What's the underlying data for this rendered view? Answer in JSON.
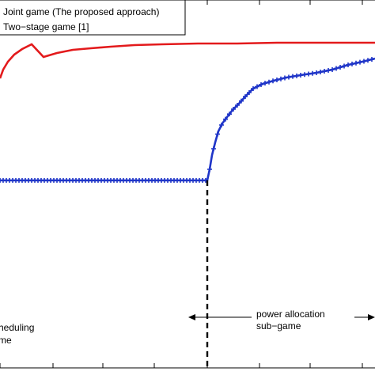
{
  "chart_data": {
    "type": "line",
    "title": "",
    "xlabel": "",
    "ylabel": "",
    "grid": false,
    "legend_position": "top-left",
    "legend": [
      {
        "label": "Joint game (The proposed approach)",
        "color": "#e31a1c",
        "marker": "none"
      },
      {
        "label": "Two−stage game [1]",
        "color": "#1f35c8",
        "marker": "plus"
      }
    ],
    "xlim": [
      0,
      474
    ],
    "ylim": [
      0,
      474
    ],
    "x_ticks": [
      0,
      67,
      130,
      195,
      262,
      328,
      392,
      458
    ],
    "series": [
      {
        "name": "Joint game (The proposed approach)",
        "color": "#e31a1c",
        "x": [
          0,
          4,
          10,
          18,
          28,
          40,
          55,
          72,
          92,
          115,
          140,
          170,
          205,
          250,
          300,
          350,
          400,
          474
        ],
        "y": [
          375,
          386,
          396,
          405,
          412,
          418,
          402,
          407,
          411,
          413,
          415,
          417,
          418,
          419,
          419,
          420,
          420,
          420
        ]
      },
      {
        "name": "Two−stage game [1]",
        "color": "#1f35c8",
        "x": [
          0,
          50,
          100,
          150,
          200,
          262,
          265,
          268,
          272,
          276,
          281,
          287,
          294,
          302,
          311,
          320,
          332,
          346,
          362,
          380,
          400,
          420,
          440,
          458,
          474
        ],
        "y": [
          246,
          246,
          246,
          246,
          246,
          246,
          260,
          278,
          294,
          308,
          318,
          326,
          335,
          343,
          353,
          362,
          368,
          372,
          376,
          379,
          382,
          386,
          392,
          396,
          400
        ]
      }
    ],
    "annotations": [
      {
        "text": "power  allocation",
        "line2": "sub−game",
        "arrow_to": [
          238,
          401
        ]
      },
      {
        "text": "heduling",
        "line2": "me"
      }
    ]
  }
}
